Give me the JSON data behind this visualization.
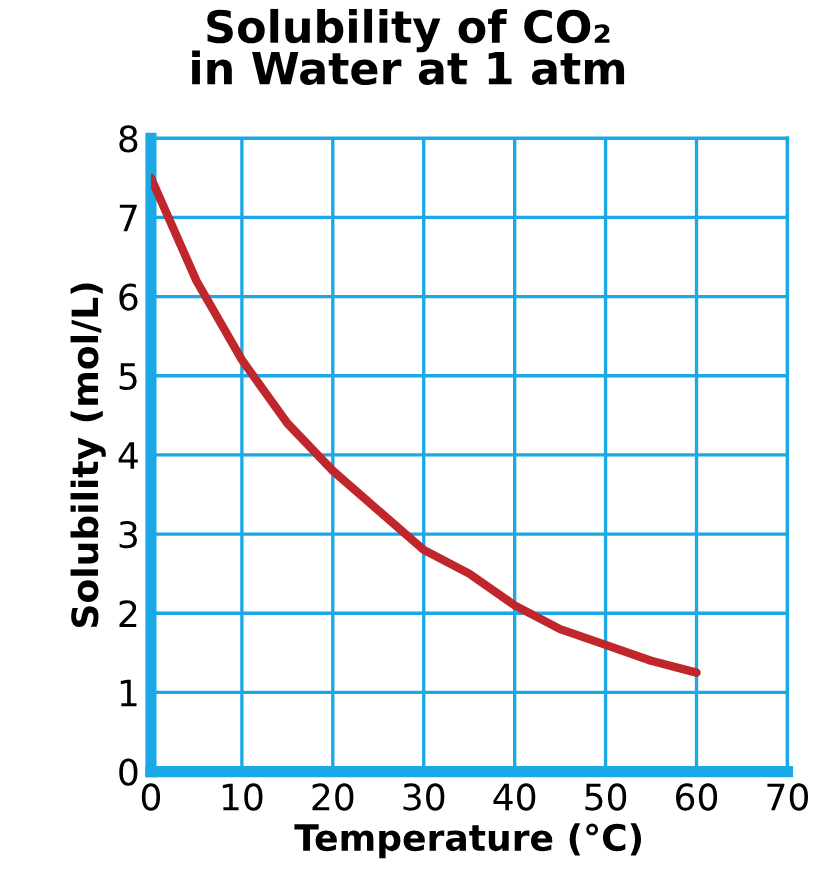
{
  "chart_data": {
    "type": "line",
    "title": "Solubility of CO₂\nin Water at 1 atm",
    "xlabel": "Temperature (°C)",
    "ylabel": "Solubility (mol/L)",
    "x": [
      0,
      5,
      10,
      15,
      20,
      25,
      30,
      35,
      40,
      45,
      50,
      55,
      60
    ],
    "series": [
      {
        "color": "#c0272d",
        "values": [
          7.5,
          6.2,
          5.2,
          4.4,
          3.8,
          3.3,
          2.8,
          2.5,
          2.1,
          1.8,
          1.6,
          1.4,
          1.25
        ]
      }
    ],
    "xlim": [
      0,
      70
    ],
    "ylim": [
      0,
      8
    ],
    "xticks": [
      0,
      10,
      20,
      30,
      40,
      50,
      60,
      70
    ],
    "yticks": [
      0,
      1,
      2,
      3,
      4,
      5,
      6,
      7,
      8
    ],
    "grid": true,
    "marker": "none",
    "line_style": "solid",
    "legend": false
  }
}
